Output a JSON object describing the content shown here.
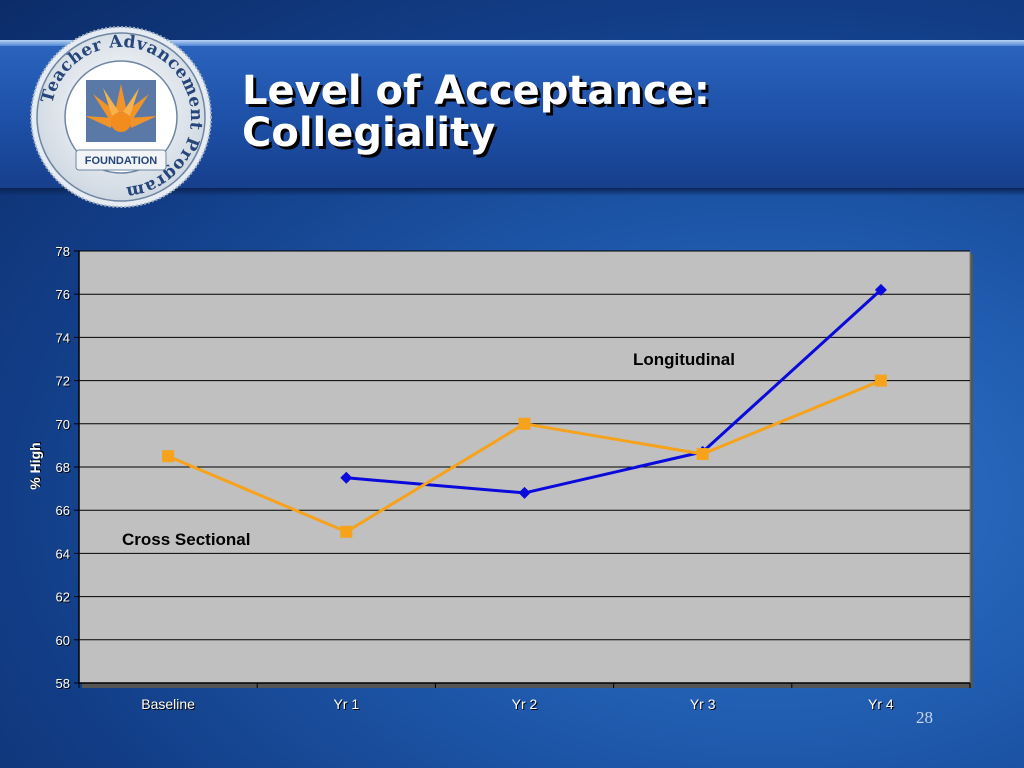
{
  "slide": {
    "title_line1": "Level of Acceptance:",
    "title_line2": "Collegiality",
    "page_number": "28"
  },
  "logo": {
    "ring_text": "Teacher Advancement Program",
    "banner_text": "FOUNDATION"
  },
  "colors": {
    "longitudinal": "#0a0adc",
    "cross_sectional": "#f7a21b",
    "plot_background": "#c0c0c0"
  },
  "chart_data": {
    "type": "line",
    "title": "",
    "xlabel": "",
    "ylabel": "% High",
    "categories": [
      "Baseline",
      "Yr 1",
      "Yr 2",
      "Yr 3",
      "Yr 4"
    ],
    "ylim": [
      58,
      78
    ],
    "yticks": [
      58,
      60,
      62,
      64,
      66,
      68,
      70,
      72,
      74,
      76,
      78
    ],
    "grid": "horizontal",
    "legend": "none",
    "series": [
      {
        "name": "Longitudinal",
        "marker": "diamond",
        "values": [
          null,
          67.5,
          66.8,
          68.7,
          76.2
        ]
      },
      {
        "name": "Cross Sectional",
        "marker": "square",
        "values": [
          68.5,
          65.0,
          70.0,
          68.6,
          72.0
        ]
      }
    ]
  }
}
